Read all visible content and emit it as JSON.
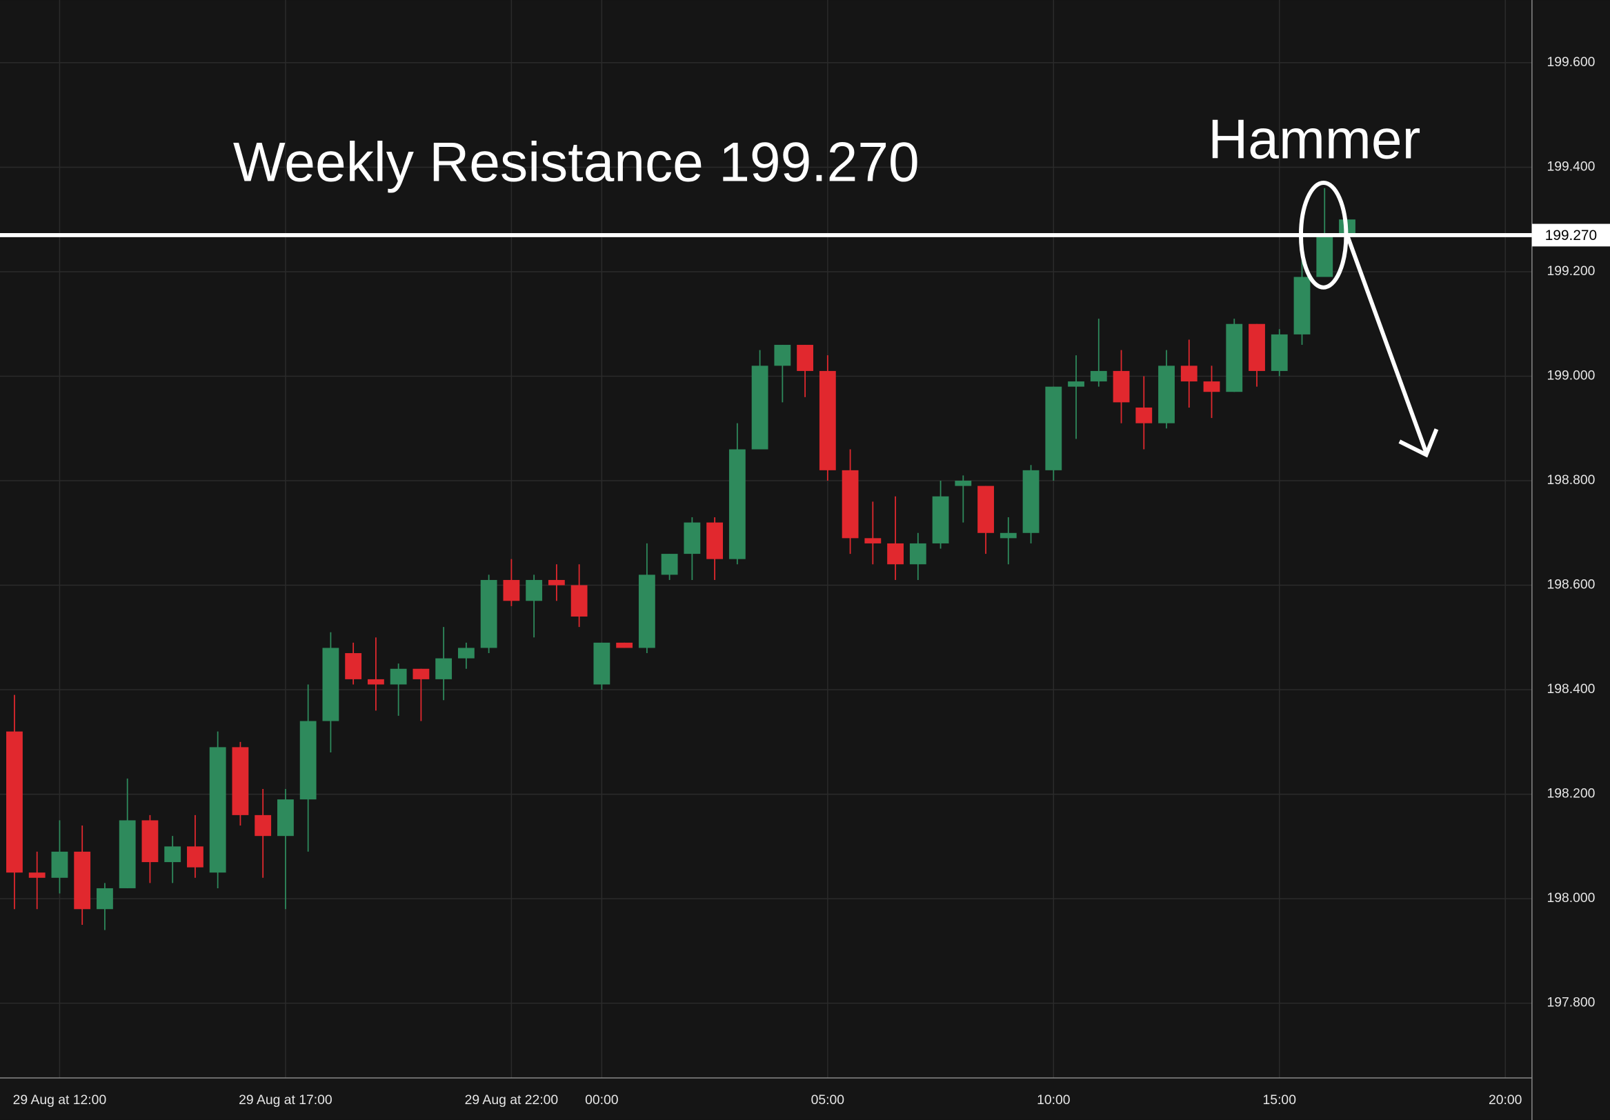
{
  "chart_data": {
    "type": "candlestick",
    "annotations": [
      "Weekly Resistance 199.270",
      "Hammer"
    ],
    "resistance": {
      "value": 199.27,
      "label": "199.270"
    },
    "up_color": "#2e8a5c",
    "down_color": "#e1282e",
    "grid": true,
    "x": [
      11,
      11.5,
      12,
      12.5,
      13,
      13.5,
      14,
      14.5,
      15,
      15.5,
      16,
      16.5,
      17,
      17.5,
      18,
      18.5,
      19,
      19.5,
      20,
      20.5,
      21,
      21.5,
      22,
      22.5,
      23,
      23.5,
      24,
      24.5,
      25,
      25.5,
      26,
      26.5,
      27,
      27.5,
      28,
      28.5,
      29,
      29.5,
      30,
      30.5,
      31,
      31.5,
      32,
      32.5,
      33,
      33.5,
      34,
      34.5,
      35,
      35.5,
      36,
      36.5,
      37,
      37.5,
      38,
      38.5,
      39,
      39.5,
      40,
      40.5
    ],
    "open": [
      198.32,
      198.05,
      198.04,
      198.09,
      197.98,
      198.02,
      198.15,
      198.07,
      198.1,
      198.05,
      198.29,
      198.16,
      198.12,
      198.19,
      198.34,
      198.47,
      198.42,
      198.41,
      198.44,
      198.42,
      198.46,
      198.48,
      198.61,
      198.57,
      198.61,
      198.6,
      198.41,
      198.49,
      198.48,
      198.62,
      198.66,
      198.72,
      198.65,
      198.86,
      199.02,
      199.06,
      199.01,
      198.82,
      198.69,
      198.68,
      198.64,
      198.68,
      198.79,
      198.79,
      198.69,
      198.7,
      198.82,
      198.98,
      198.99,
      199.01,
      198.94,
      198.91,
      199.02,
      198.99,
      198.97,
      199.1,
      199.01,
      199.08,
      199.19,
      199.27
    ],
    "high": [
      198.39,
      198.09,
      198.15,
      198.14,
      198.03,
      198.23,
      198.16,
      198.12,
      198.16,
      198.32,
      198.3,
      198.21,
      198.21,
      198.41,
      198.51,
      198.49,
      198.5,
      198.45,
      198.44,
      198.52,
      198.49,
      198.62,
      198.65,
      198.62,
      198.64,
      198.64,
      198.49,
      198.49,
      198.68,
      198.66,
      198.73,
      198.73,
      198.91,
      199.05,
      199.06,
      199.06,
      199.04,
      198.86,
      198.76,
      198.77,
      198.7,
      198.8,
      198.81,
      198.79,
      198.73,
      198.83,
      198.98,
      199.04,
      199.11,
      199.05,
      199.0,
      199.05,
      199.07,
      199.02,
      199.11,
      199.1,
      199.09,
      199.24,
      199.36,
      199.3
    ],
    "low": [
      197.98,
      197.98,
      198.01,
      197.95,
      197.94,
      198.02,
      198.03,
      198.03,
      198.04,
      198.02,
      198.14,
      198.04,
      197.98,
      198.09,
      198.28,
      198.41,
      198.36,
      198.35,
      198.34,
      198.38,
      198.44,
      198.47,
      198.56,
      198.5,
      198.57,
      198.52,
      198.4,
      198.48,
      198.47,
      198.61,
      198.61,
      198.61,
      198.64,
      198.86,
      198.95,
      198.96,
      198.8,
      198.66,
      198.64,
      198.61,
      198.61,
      198.67,
      198.72,
      198.66,
      198.64,
      198.68,
      198.8,
      198.88,
      198.98,
      198.91,
      198.86,
      198.9,
      198.94,
      198.92,
      198.97,
      198.98,
      199.0,
      199.06,
      199.19,
      199.27
    ],
    "close": [
      198.05,
      198.04,
      198.09,
      197.98,
      198.02,
      198.15,
      198.07,
      198.1,
      198.06,
      198.29,
      198.16,
      198.12,
      198.19,
      198.34,
      198.48,
      198.42,
      198.41,
      198.44,
      198.42,
      198.46,
      198.48,
      198.61,
      198.57,
      198.61,
      198.6,
      198.54,
      198.49,
      198.48,
      198.62,
      198.66,
      198.72,
      198.65,
      198.86,
      199.02,
      199.06,
      199.01,
      198.82,
      198.69,
      198.68,
      198.64,
      198.68,
      198.77,
      198.8,
      198.7,
      198.7,
      198.82,
      198.98,
      198.99,
      199.01,
      198.95,
      198.91,
      199.02,
      198.99,
      198.97,
      199.1,
      199.01,
      199.08,
      199.19,
      199.27,
      199.3
    ],
    "xlim": [
      10.68,
      44.59
    ],
    "xticks": [
      {
        "value": 12,
        "label": "29 Aug at 12:00"
      },
      {
        "value": 17,
        "label": "29 Aug at 17:00"
      },
      {
        "value": 22,
        "label": "29 Aug at 22:00"
      },
      {
        "value": 24,
        "label": "00:00"
      },
      {
        "value": 29,
        "label": "05:00"
      },
      {
        "value": 34,
        "label": "10:00"
      },
      {
        "value": 39,
        "label": "15:00"
      },
      {
        "value": 44,
        "label": "20:00"
      }
    ],
    "ylim": [
      197.657,
      199.72
    ],
    "yticks": [
      {
        "value": 197.8,
        "label": "197.800"
      },
      {
        "value": 198,
        "label": "198.000"
      },
      {
        "value": 198.2,
        "label": "198.200"
      },
      {
        "value": 198.4,
        "label": "198.400"
      },
      {
        "value": 198.6,
        "label": "198.600"
      },
      {
        "value": 198.8,
        "label": "198.800"
      },
      {
        "value": 199,
        "label": "199.000"
      },
      {
        "value": 199.2,
        "label": "199.200"
      },
      {
        "value": 199.4,
        "label": "199.400"
      },
      {
        "value": 199.6,
        "label": "199.600"
      }
    ]
  }
}
